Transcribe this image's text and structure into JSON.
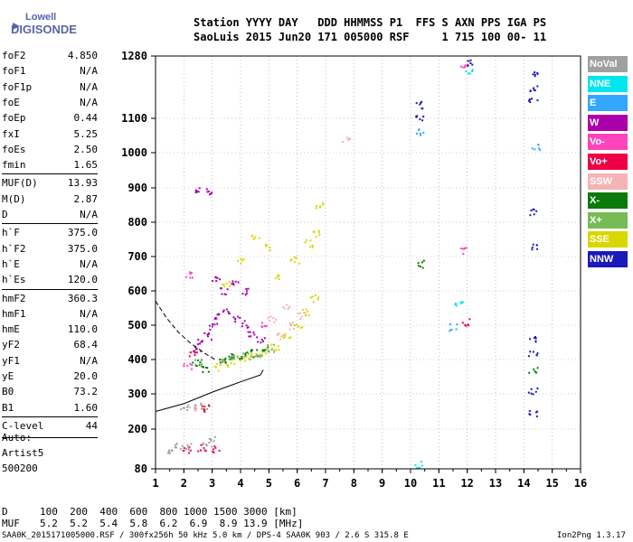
{
  "logo": {
    "line1": "Lowell",
    "line2": "DIGISONDE"
  },
  "header": {
    "row1": "Station YYYY DAY   DDD HHMMSS P1  FFS S AXN PPS IGA PS",
    "row2": "SaoLuis 2015 Jun20 171 005000 RSF     1 715 100 00- 11"
  },
  "params": [
    {
      "label": "foF2",
      "value": "4.850"
    },
    {
      "label": "foF1",
      "value": "N/A"
    },
    {
      "label": "foF1p",
      "value": "N/A"
    },
    {
      "label": "foE",
      "value": "N/A"
    },
    {
      "label": "foEp",
      "value": "0.44"
    },
    {
      "label": "fxI",
      "value": "5.25"
    },
    {
      "label": "foEs",
      "value": "2.50"
    },
    {
      "label": "fmin",
      "value": "1.65"
    },
    {
      "label": "MUF(D)",
      "value": "13.93"
    },
    {
      "label": "M(D)",
      "value": "2.87"
    },
    {
      "label": "D",
      "value": "N/A"
    },
    {
      "label": "h`F",
      "value": "375.0"
    },
    {
      "label": "h`F2",
      "value": "375.0"
    },
    {
      "label": "h`E",
      "value": "N/A"
    },
    {
      "label": "h`Es",
      "value": "120.0"
    },
    {
      "label": "hmF2",
      "value": "360.3"
    },
    {
      "label": "hmF1",
      "value": "N/A"
    },
    {
      "label": "hmE",
      "value": "110.0"
    },
    {
      "label": "yF2",
      "value": "68.4"
    },
    {
      "label": "yF1",
      "value": "N/A"
    },
    {
      "label": "yE",
      "value": "20.0"
    },
    {
      "label": "B0",
      "value": "73.2"
    },
    {
      "label": "B1",
      "value": "1.60"
    },
    {
      "label": "C-level",
      "value": "44"
    }
  ],
  "auto": {
    "line1": "Auto:",
    "line2": "Artist5",
    "line3": "500200"
  },
  "legend": [
    {
      "label": "NoVal",
      "color": "#a0a0a0"
    },
    {
      "label": "NNE",
      "color": "#00e5ee"
    },
    {
      "label": "E",
      "color": "#33a6ff"
    },
    {
      "label": "W",
      "color": "#aa00aa"
    },
    {
      "label": "Vo-",
      "color": "#ff44bb"
    },
    {
      "label": "Vo+",
      "color": "#ee0044"
    },
    {
      "label": "SSW",
      "color": "#f5b3b3"
    },
    {
      "label": "X-",
      "color": "#0a7a0a"
    },
    {
      "label": "X+",
      "color": "#77bb55"
    },
    {
      "label": "SSE",
      "color": "#d8d800"
    },
    {
      "label": "NNW",
      "color": "#1a1ab8"
    }
  ],
  "footer": {
    "d_label": "D",
    "d_values": "100  200  400  600  800 1000 1500 3000 [km]",
    "muf_label": "MUF",
    "muf_values": "5.2  5.2  5.4  5.8  6.2  6.9  8.9 13.9 [MHz]",
    "file_info": "SAA0K_2015171005000.RSF / 300fx256h 50 kHz 5.0 km / DPS-4 SAA0K 903 / 2.6 S 315.8 E",
    "version": "Ion2Png 1.3.17"
  },
  "chart_data": {
    "type": "scatter",
    "title": "",
    "xlabel": "",
    "ylabel": "",
    "x_ticks": [
      1,
      2,
      3,
      4,
      5,
      6,
      7,
      8,
      9,
      10,
      11,
      12,
      13,
      14,
      15,
      16
    ],
    "y_ticks": [
      80,
      200,
      300,
      400,
      500,
      600,
      700,
      800,
      900,
      1000,
      1100,
      1280
    ],
    "xlim": [
      1,
      16
    ],
    "ylim": [
      80,
      1280
    ],
    "grid": "dotted",
    "legend_position": "right",
    "series": [
      {
        "name": "W",
        "color": "#aa00aa",
        "points": [
          [
            2.6,
            455
          ],
          [
            2.8,
            470
          ],
          [
            3.0,
            500
          ],
          [
            3.2,
            530
          ],
          [
            3.5,
            540
          ],
          [
            3.8,
            520
          ],
          [
            4.1,
            505
          ],
          [
            4.4,
            480
          ],
          [
            4.7,
            460
          ],
          [
            3.4,
            600
          ],
          [
            3.8,
            620
          ],
          [
            4.2,
            600
          ],
          [
            2.5,
            430
          ],
          [
            3.1,
            640
          ],
          [
            2.4,
            900
          ],
          [
            2.8,
            890
          ]
        ]
      },
      {
        "name": "SSE",
        "color": "#d8d800",
        "points": [
          [
            3.2,
            380
          ],
          [
            3.6,
            390
          ],
          [
            4.0,
            400
          ],
          [
            4.4,
            410
          ],
          [
            4.8,
            420
          ],
          [
            5.2,
            440
          ],
          [
            5.6,
            470
          ],
          [
            6.0,
            500
          ],
          [
            6.3,
            540
          ],
          [
            6.6,
            580
          ],
          [
            5.3,
            640
          ],
          [
            5.9,
            690
          ],
          [
            6.4,
            740
          ],
          [
            6.7,
            770
          ],
          [
            5.0,
            730
          ],
          [
            4.5,
            760
          ],
          [
            4.0,
            690
          ],
          [
            3.5,
            620
          ],
          [
            6.8,
            850
          ]
        ]
      },
      {
        "name": "X-",
        "color": "#0a7a0a",
        "points": [
          [
            3.3,
            400
          ],
          [
            3.7,
            410
          ],
          [
            4.1,
            415
          ],
          [
            4.5,
            420
          ],
          [
            4.9,
            430
          ],
          [
            2.4,
            390
          ],
          [
            2.7,
            375
          ],
          [
            10.3,
            680
          ],
          [
            14.3,
            370
          ]
        ]
      },
      {
        "name": "X+",
        "color": "#77bb55",
        "points": [
          [
            3.4,
            395
          ],
          [
            3.8,
            405
          ],
          [
            4.2,
            412
          ],
          [
            4.6,
            418
          ],
          [
            5.0,
            435
          ],
          [
            2.5,
            395
          ],
          [
            2.8,
            260
          ]
        ]
      },
      {
        "name": "SSW",
        "color": "#f5b3b3",
        "points": [
          [
            5.4,
            470
          ],
          [
            5.8,
            500
          ],
          [
            6.1,
            530
          ],
          [
            5.6,
            560
          ],
          [
            5.1,
            520
          ],
          [
            2.3,
            260
          ],
          [
            7.7,
            1040
          ]
        ]
      },
      {
        "name": "Vo-",
        "color": "#ff44bb",
        "points": [
          [
            2.2,
            650
          ],
          [
            2.1,
            380
          ],
          [
            4.8,
            500
          ],
          [
            11.9,
            720
          ],
          [
            11.9,
            1260
          ]
        ]
      },
      {
        "name": "Vo+",
        "color": "#ee0044",
        "points": [
          [
            2.3,
            420
          ],
          [
            2.7,
            260
          ],
          [
            2.1,
            140
          ],
          [
            2.6,
            145
          ],
          [
            3.1,
            140
          ],
          [
            11.9,
            510
          ]
        ]
      },
      {
        "name": "NNE",
        "color": "#00e5ee",
        "points": [
          [
            10.3,
            95
          ],
          [
            11.7,
            560
          ],
          [
            12.0,
            1240
          ]
        ]
      },
      {
        "name": "E",
        "color": "#33a6ff",
        "points": [
          [
            11.5,
            495
          ],
          [
            14.4,
            1020
          ],
          [
            10.3,
            1060
          ]
        ]
      },
      {
        "name": "NNW",
        "color": "#1a1ab8",
        "points": [
          [
            14.3,
            245
          ],
          [
            14.3,
            310
          ],
          [
            14.3,
            420
          ],
          [
            14.3,
            460
          ],
          [
            14.3,
            730
          ],
          [
            14.3,
            830
          ],
          [
            14.3,
            1150
          ],
          [
            14.3,
            1190
          ],
          [
            14.3,
            1230
          ],
          [
            10.3,
            1100
          ],
          [
            10.3,
            1140
          ],
          [
            12.0,
            1260
          ]
        ]
      },
      {
        "name": "NoVal",
        "color": "#a0a0a0",
        "points": [
          [
            2.0,
            265
          ],
          [
            2.5,
            265
          ],
          [
            1.4,
            140
          ],
          [
            1.8,
            150
          ],
          [
            2.2,
            150
          ],
          [
            2.8,
            150
          ],
          [
            3.0,
            170
          ]
        ]
      }
    ],
    "traces": [
      {
        "style": "solid",
        "points": [
          [
            1.0,
            250
          ],
          [
            2.0,
            272
          ],
          [
            3.0,
            305
          ],
          [
            4.0,
            335
          ],
          [
            4.7,
            355
          ],
          [
            4.8,
            370
          ]
        ]
      },
      {
        "style": "dashed",
        "points": [
          [
            1.0,
            570
          ],
          [
            1.4,
            520
          ],
          [
            1.8,
            480
          ],
          [
            2.2,
            450
          ],
          [
            2.7,
            420
          ],
          [
            3.1,
            400
          ]
        ]
      }
    ]
  }
}
